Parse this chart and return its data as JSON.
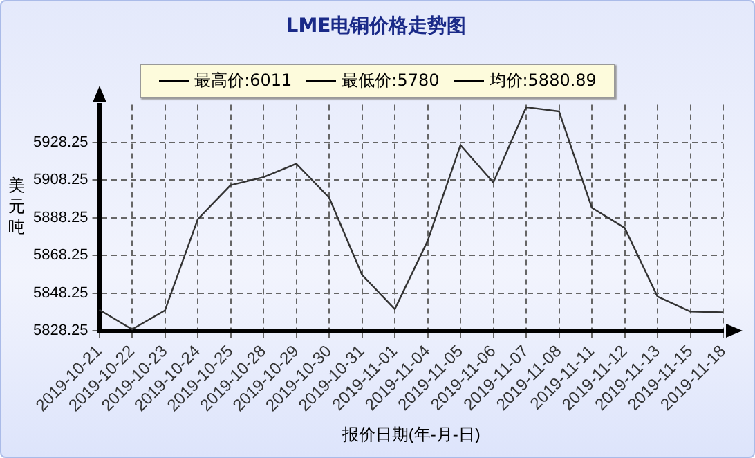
{
  "chart_data": {
    "type": "line",
    "title": "LME电铜价格走势图",
    "xlabel": "报价日期(年-月-日)",
    "ylabel": "美元吨",
    "annotations": [
      "最高价:6011",
      "最低价:5780",
      "均价:5880.89"
    ],
    "categories": [
      "2019-10-21",
      "2019-10-22",
      "2019-10-23",
      "2019-10-24",
      "2019-10-25",
      "2019-10-28",
      "2019-10-29",
      "2019-10-30",
      "2019-10-31",
      "2019-11-01",
      "2019-11-04",
      "2019-11-05",
      "2019-11-06",
      "2019-11-07",
      "2019-11-08",
      "2019-11-11",
      "2019-11-12",
      "2019-11-13",
      "2019-11-15",
      "2019-11-18"
    ],
    "series": [
      {
        "color": "#333333",
        "values": [
          5839.4,
          5829,
          5839,
          5887.5,
          5905.6,
          5909.8,
          5917,
          5899,
          5858,
          5839.7,
          5876,
          5926.9,
          5907,
          5947,
          5944.8,
          5893.6,
          5882.9,
          5846.4,
          5838.4,
          5838
        ]
      }
    ],
    "ylim": [
      5828.25,
      5948.25
    ],
    "yticks": [
      5828.25,
      5848.25,
      5868.25,
      5888.25,
      5908.25,
      5928.25
    ],
    "grid": true,
    "marker": "none",
    "line_style": "solid",
    "legend": false
  }
}
